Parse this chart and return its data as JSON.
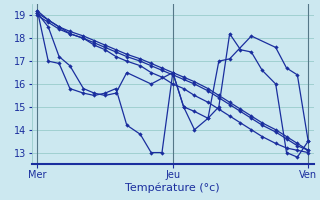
{
  "title": "",
  "xlabel": "Température (°c)",
  "ylabel": "",
  "background_color": "#cce8f0",
  "grid_color": "#99cccc",
  "line_color": "#1a2e9e",
  "ylim": [
    12.5,
    19.5
  ],
  "yticks": [
    13,
    14,
    15,
    16,
    17,
    18,
    19
  ],
  "xtick_labels": [
    "Mer",
    "Jeu",
    "Ven"
  ],
  "xtick_positions": [
    0.0,
    0.5,
    1.0
  ],
  "xlim": [
    -0.02,
    1.02
  ],
  "series": [
    {
      "x": [
        0.0,
        0.04,
        0.08,
        0.12,
        0.17,
        0.21,
        0.25,
        0.29,
        0.33,
        0.38,
        0.42,
        0.46,
        0.5,
        0.54,
        0.58,
        0.63,
        0.67,
        0.71,
        0.75,
        0.79,
        0.83,
        0.88,
        0.92,
        0.96,
        1.0
      ],
      "y": [
        19.2,
        18.8,
        18.5,
        18.3,
        18.1,
        17.9,
        17.7,
        17.5,
        17.3,
        17.1,
        16.9,
        16.7,
        16.5,
        16.3,
        16.1,
        15.8,
        15.5,
        15.2,
        14.9,
        14.6,
        14.3,
        14.0,
        13.7,
        13.4,
        13.1
      ]
    },
    {
      "x": [
        0.0,
        0.04,
        0.08,
        0.12,
        0.17,
        0.21,
        0.25,
        0.29,
        0.33,
        0.38,
        0.42,
        0.46,
        0.5,
        0.54,
        0.58,
        0.63,
        0.67,
        0.71,
        0.75,
        0.79,
        0.83,
        0.88,
        0.92,
        0.96,
        1.0
      ],
      "y": [
        19.0,
        18.7,
        18.4,
        18.2,
        18.0,
        17.8,
        17.6,
        17.4,
        17.2,
        17.0,
        16.8,
        16.6,
        16.4,
        16.2,
        16.0,
        15.7,
        15.4,
        15.1,
        14.8,
        14.5,
        14.2,
        13.9,
        13.6,
        13.3,
        13.1
      ]
    },
    {
      "x": [
        0.0,
        0.04,
        0.08,
        0.12,
        0.17,
        0.21,
        0.25,
        0.29,
        0.33,
        0.38,
        0.42,
        0.46,
        0.5,
        0.54,
        0.58,
        0.63,
        0.67,
        0.71,
        0.75,
        0.79,
        0.83,
        0.88,
        0.92,
        0.96,
        1.0
      ],
      "y": [
        19.1,
        18.8,
        18.5,
        18.2,
        18.0,
        17.7,
        17.5,
        17.2,
        17.0,
        16.8,
        16.5,
        16.3,
        16.0,
        15.8,
        15.5,
        15.2,
        14.9,
        14.6,
        14.3,
        14.0,
        13.7,
        13.4,
        13.2,
        13.1,
        13.0
      ]
    },
    {
      "x": [
        0.0,
        0.04,
        0.08,
        0.12,
        0.17,
        0.21,
        0.25,
        0.29,
        0.33,
        0.42,
        0.5,
        0.54,
        0.58,
        0.63,
        0.67,
        0.71,
        0.79,
        0.88,
        0.92,
        0.96,
        1.0
      ],
      "y": [
        19.1,
        18.5,
        17.2,
        16.8,
        15.8,
        15.6,
        15.5,
        15.6,
        16.5,
        16.0,
        16.5,
        15.0,
        14.8,
        14.5,
        17.0,
        17.1,
        18.1,
        17.6,
        16.7,
        16.4,
        13.5
      ]
    },
    {
      "x": [
        0.0,
        0.04,
        0.08,
        0.12,
        0.17,
        0.21,
        0.25,
        0.29,
        0.33,
        0.38,
        0.42,
        0.46,
        0.5,
        0.54,
        0.58,
        0.63,
        0.67,
        0.71,
        0.75,
        0.79,
        0.83,
        0.88,
        0.92,
        0.96,
        1.0
      ],
      "y": [
        19.2,
        17.0,
        16.9,
        15.8,
        15.6,
        15.5,
        15.6,
        15.8,
        14.2,
        13.8,
        13.0,
        13.0,
        16.5,
        15.0,
        14.0,
        14.5,
        15.0,
        18.2,
        17.5,
        17.4,
        16.6,
        16.0,
        13.0,
        12.8,
        13.5
      ]
    }
  ]
}
